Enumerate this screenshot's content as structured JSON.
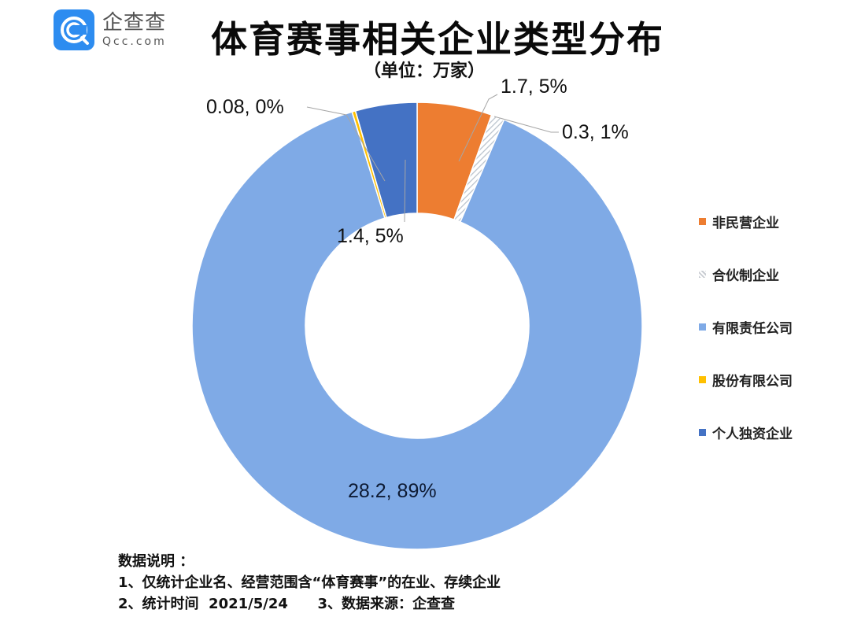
{
  "logo": {
    "cn": "企查查",
    "en": "Qcc.com",
    "brand_color": "#2d8cf0"
  },
  "header": {
    "title": "体育赛事相关企业类型分布",
    "subtitle": "（单位：万家）"
  },
  "chart_data": {
    "type": "pie",
    "variant": "donut",
    "title": "体育赛事相关企业类型分布",
    "unit": "万家",
    "categories": [
      "非民营企业",
      "合伙制企业",
      "有限责任公司",
      "股份有限公司",
      "个人独资企业"
    ],
    "values": [
      1.7,
      0.3,
      28.2,
      0.08,
      1.4
    ],
    "percents": [
      5,
      1,
      89,
      0,
      5
    ],
    "data_labels": [
      "1.7, 5%",
      "0.3, 1%",
      "28.2, 89%",
      "0.08, 0%",
      "1.4, 5%"
    ],
    "colors": [
      "#ed7d31",
      "#d9dde3",
      "#7faae6",
      "#ffc000",
      "#4472c4"
    ],
    "patterns": [
      null,
      "diagonal-hatch",
      null,
      null,
      null
    ],
    "start_angle_deg": 0,
    "direction": "clockwise",
    "legend_position": "right"
  },
  "legend": {
    "items": [
      {
        "label": "非民营企业",
        "color": "#ed7d31",
        "icon": "square"
      },
      {
        "label": "合伙制企业",
        "color": "#c8ccd2",
        "icon": "hatch-square"
      },
      {
        "label": "有限责任公司",
        "color": "#7faae6",
        "icon": "square"
      },
      {
        "label": "股份有限公司",
        "color": "#ffc000",
        "icon": "square"
      },
      {
        "label": "个人独资企业",
        "color": "#4472c4",
        "icon": "square"
      }
    ]
  },
  "notes": {
    "heading": "数据说明 ：",
    "line1": "1、仅统计企业名、经营范围含“体育赛事”的在业、存续企业",
    "line2a": "2、统计时间  2021/5/24",
    "line2b": "3、数据来源：企查查"
  }
}
